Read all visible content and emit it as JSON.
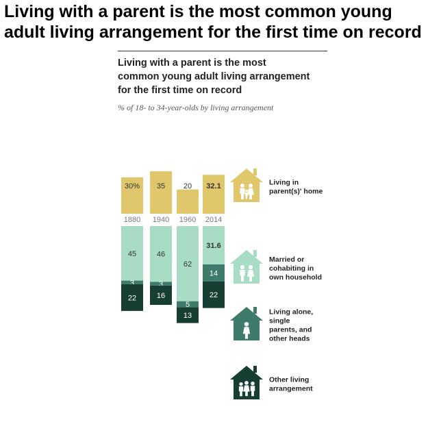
{
  "header": {
    "headline": "Living with a parent is the most common young\nadult living arrangement for the first time on record"
  },
  "chart_data": {
    "type": "bar",
    "title": "Living with a parent is the most\ncommon young adult living arrangement\nfor the first time on record",
    "subtitle": "% of 18- to 34-year-olds by living arrangement",
    "categories": [
      "1880",
      "1940",
      "1960",
      "2014"
    ],
    "stacked": true,
    "series": [
      {
        "name": "Living in parent(s)' home",
        "values": [
          30,
          35,
          20,
          32.1
        ],
        "labels": [
          "30%",
          "35",
          "20",
          "32.1"
        ],
        "color": "#e0c76b",
        "text_color": "#333333"
      },
      {
        "name": "Married or cohabiting in own household",
        "values": [
          45,
          46,
          62,
          31.6
        ],
        "labels": [
          "45",
          "46",
          "62",
          "31.6"
        ],
        "color": "#a8dcc5",
        "text_color": "#333333"
      },
      {
        "name": "Living alone, single parents, and other heads",
        "values": [
          3,
          3,
          5,
          14
        ],
        "labels": [
          "3",
          "3",
          "5",
          "14"
        ],
        "color": "#3e7b6b",
        "text_color": "#ffffff"
      },
      {
        "name": "Other living arrangement",
        "values": [
          22,
          16,
          13,
          22
        ],
        "labels": [
          "22",
          "16",
          "13",
          "22"
        ],
        "color": "#173e33",
        "text_color": "#ffffff"
      }
    ],
    "bold_category": "2014",
    "legend": [
      {
        "lines": [
          "Living in",
          "parent(s)' home"
        ],
        "icon": "house-parent-child-icon",
        "color": "#e0c76b"
      },
      {
        "lines": [
          "Married or",
          "cohabiting in",
          "own household"
        ],
        "icon": "house-couple-icon",
        "color": "#a8dcc5"
      },
      {
        "lines": [
          "Living alone,",
          "single",
          "parents, and",
          "other heads"
        ],
        "icon": "house-single-person-icon",
        "color": "#3e7b6b"
      },
      {
        "lines": [
          "Other living",
          "arrangement"
        ],
        "icon": "house-people-icon",
        "color": "#173e33"
      }
    ],
    "legend_position": "right"
  }
}
